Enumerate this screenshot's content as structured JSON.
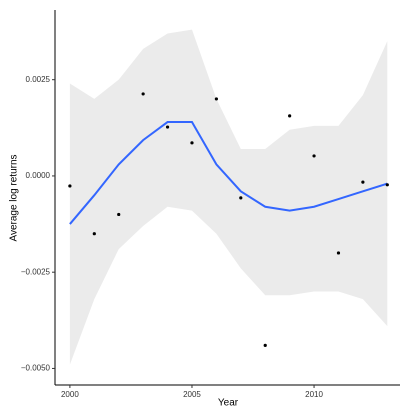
{
  "chart_data": {
    "type": "scatter",
    "x_label": "Year",
    "y_label": "Average log returns",
    "x": [
      2000,
      2001,
      2002,
      2003,
      2004,
      2005,
      2006,
      2007,
      2008,
      2009,
      2010,
      2011,
      2012,
      2013
    ],
    "values": [
      -0.00026,
      -0.0015,
      -0.001,
      0.00213,
      0.00127,
      0.00086,
      0.002,
      -0.00057,
      -0.0044,
      0.00156,
      0.00052,
      -0.002,
      -0.00016,
      -0.00023
    ],
    "color": "#000000",
    "smooth": {
      "color": "#3366ff",
      "band_color": "#ebebeb",
      "x": [
        2000,
        2001,
        2002,
        2003,
        2004,
        2005,
        2006,
        2007,
        2008,
        2009,
        2010,
        2011,
        2012,
        2013
      ],
      "values": [
        -0.00125,
        -0.0005,
        0.0003,
        0.00093,
        0.0014,
        0.0014,
        0.0003,
        -0.0004,
        -0.0008,
        -0.0009,
        -0.0008,
        -0.0006,
        -0.0004,
        -0.0002
      ],
      "upper": [
        0.0024,
        0.002,
        0.0025,
        0.0033,
        0.0037,
        0.0038,
        0.002,
        0.0007,
        0.0007,
        0.0012,
        0.0013,
        0.0013,
        0.0021,
        0.0035
      ],
      "lower": [
        -0.0049,
        -0.0032,
        -0.0019,
        -0.0013,
        -0.0008,
        -0.0009,
        -0.0015,
        -0.0024,
        -0.0031,
        -0.0031,
        -0.003,
        -0.003,
        -0.0032,
        -0.0039
      ]
    },
    "xlim": [
      1999.39,
      2013.52
    ],
    "ylim": [
      -0.00543,
      0.00431
    ],
    "xticks": [
      2000,
      2005,
      2010
    ],
    "yticks": [
      {
        "value": -0.005,
        "label": "−0.0050"
      },
      {
        "value": -0.0025,
        "label": "−0.0025"
      },
      {
        "value": 0,
        "label": "0.0000"
      },
      {
        "value": 0.0025,
        "label": "0.0025"
      }
    ]
  }
}
